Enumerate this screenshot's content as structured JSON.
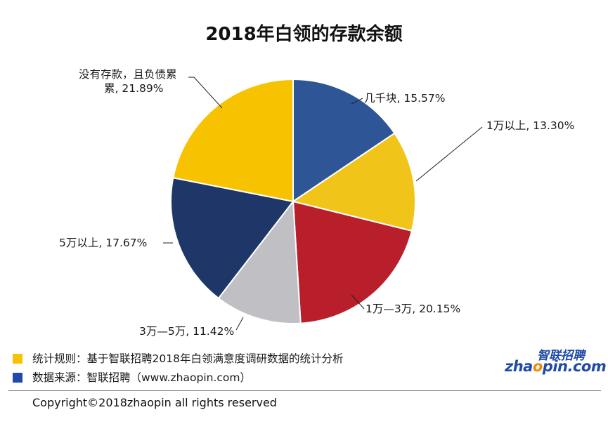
{
  "chart_data": {
    "type": "pie",
    "title": "2018年白领的存款余额",
    "slices": [
      {
        "label": "几千块",
        "value": 15.57,
        "text": "几千块, 15.57%",
        "color": "#2e5596"
      },
      {
        "label": "1万以上",
        "value": 13.3,
        "text": "1万以上, 13.30%",
        "color": "#f0c419"
      },
      {
        "label": "1万—3万",
        "value": 20.15,
        "text": "1万—3万, 20.15%",
        "color": "#b81f2a"
      },
      {
        "label": "3万—5万",
        "value": 11.42,
        "text": "3万—5万, 11.42%",
        "color": "#bfbfc4"
      },
      {
        "label": "5万以上",
        "value": 17.67,
        "text": "5万以上, 17.67%",
        "color": "#1f3668"
      },
      {
        "label": "没有存款，且负债累累",
        "value": 21.89,
        "text_line1": "没有存款，且负债累",
        "text_line2": "累, 21.89%",
        "color": "#f7c200"
      }
    ]
  },
  "notes": {
    "rule_text": "统计规则：基于智联招聘2018年白领满意度调研数据的统计分析",
    "rule_color": "#f7c200",
    "source_text": "数据来源：智联招聘（www.zhaopin.com）",
    "source_color": "#1f4aa8"
  },
  "logo": {
    "cn": "智联招聘",
    "en_a": "zha",
    "en_o": "o",
    "en_b": "pin.com"
  },
  "copyright": "Copyright©2018zhaopin all rights reserved"
}
